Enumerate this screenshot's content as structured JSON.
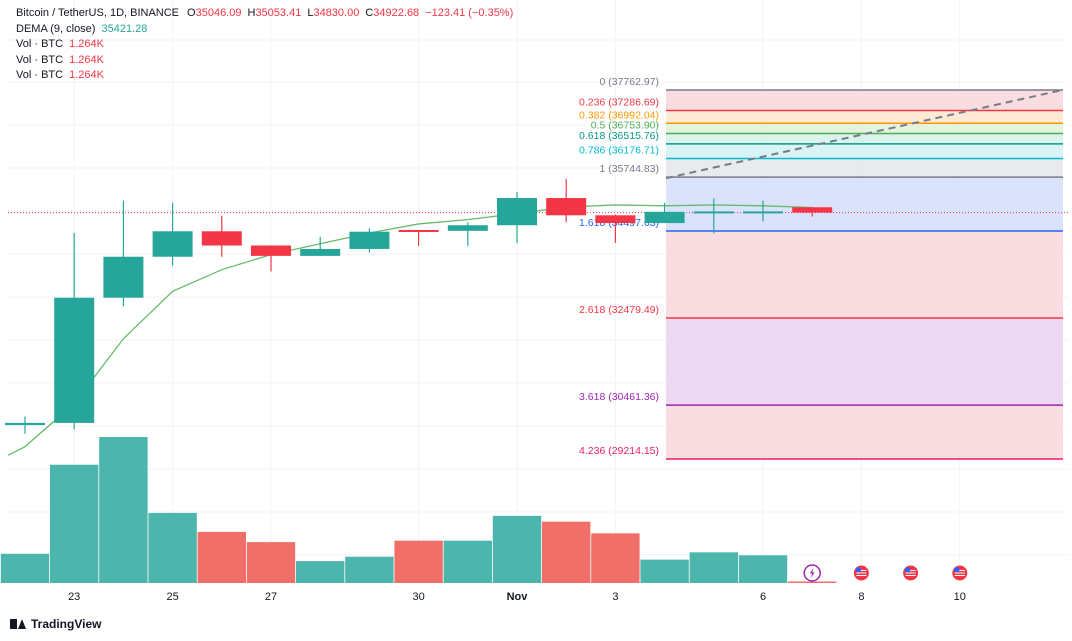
{
  "legend": {
    "symbol": "Bitcoin / TetherUS, 1D, BINANCE",
    "o_label": "O",
    "o_value": "35046.09",
    "h_label": "H",
    "h_value": "35053.41",
    "l_label": "L",
    "l_value": "34830.00",
    "c_label": "C",
    "c_value": "34922.68",
    "change": "−123.41 (−0.35%)",
    "dema_label": "DEMA (9, close)",
    "dema_value": "35421.28",
    "vol_rows": [
      {
        "label": "Vol · BTC",
        "value": "1.264K"
      },
      {
        "label": "Vol · BTC",
        "value": "1.264K"
      },
      {
        "label": "Vol · BTC",
        "value": "1.264K"
      }
    ]
  },
  "footer": {
    "brand": "TradingView"
  },
  "colors": {
    "up": "#26a69a",
    "down": "#f23645",
    "vol_up": "#4db6ac",
    "vol_down": "#f07069",
    "dema": "#66bb6a"
  },
  "chart_data": {
    "type": "candlestick",
    "x_ticks": [
      {
        "slot": 1,
        "label": "23"
      },
      {
        "slot": 3,
        "label": "25"
      },
      {
        "slot": 5,
        "label": "27"
      },
      {
        "slot": 8,
        "label": "30"
      },
      {
        "slot": 10,
        "label": "Nov"
      },
      {
        "slot": 12,
        "label": "3"
      },
      {
        "slot": 15,
        "label": "6"
      },
      {
        "slot": 17,
        "label": "8"
      },
      {
        "slot": 19,
        "label": "10"
      }
    ],
    "candles": [
      {
        "o": 30000,
        "h": 30200,
        "l": 29800,
        "c": 30050
      },
      {
        "o": 30050,
        "h": 34450,
        "l": 29900,
        "c": 32950
      },
      {
        "o": 32950,
        "h": 35200,
        "l": 32750,
        "c": 33900
      },
      {
        "o": 33900,
        "h": 35150,
        "l": 33700,
        "c": 34490
      },
      {
        "o": 34490,
        "h": 34850,
        "l": 33900,
        "c": 34160
      },
      {
        "o": 34160,
        "h": 34160,
        "l": 33560,
        "c": 33920
      },
      {
        "o": 33920,
        "h": 34360,
        "l": 33920,
        "c": 34080
      },
      {
        "o": 34080,
        "h": 34560,
        "l": 34000,
        "c": 34480
      },
      {
        "o": 34520,
        "h": 34520,
        "l": 34150,
        "c": 34500
      },
      {
        "o": 34500,
        "h": 34700,
        "l": 34150,
        "c": 34630
      },
      {
        "o": 34630,
        "h": 35400,
        "l": 34220,
        "c": 35260
      },
      {
        "o": 35260,
        "h": 35700,
        "l": 34700,
        "c": 34860
      },
      {
        "o": 34860,
        "h": 34880,
        "l": 34220,
        "c": 34680
      },
      {
        "o": 34680,
        "h": 35150,
        "l": 34680,
        "c": 34940
      },
      {
        "o": 34940,
        "h": 35250,
        "l": 34440,
        "c": 34950
      },
      {
        "o": 34940,
        "h": 35200,
        "l": 34720,
        "c": 34950
      },
      {
        "o": 35046.09,
        "h": 35053.41,
        "l": 34830.0,
        "c": 34922.68
      }
    ],
    "volume_relative": [
      0.2,
      0.81,
      1.0,
      0.48,
      0.35,
      0.28,
      0.15,
      0.18,
      0.29,
      0.29,
      0.46,
      0.42,
      0.34,
      0.16,
      0.21,
      0.19,
      0.01
    ],
    "dema": [
      29500,
      30500,
      32000,
      33100,
      33600,
      33950,
      34200,
      34450,
      34660,
      34760,
      34900,
      35050,
      35100,
      35080,
      35100,
      35080,
      35040
    ],
    "fib": {
      "levels": [
        {
          "ratio": "0",
          "price": "37762.97",
          "value": 37762.97,
          "color": "#787b86"
        },
        {
          "ratio": "0.236",
          "price": "37286.69",
          "value": 37286.69,
          "color": "#f23645"
        },
        {
          "ratio": "0.382",
          "price": "36992.04",
          "value": 36992.04,
          "color": "#ff9800"
        },
        {
          "ratio": "0.5",
          "price": "36753.90",
          "value": 36753.9,
          "color": "#4caf50"
        },
        {
          "ratio": "0.618",
          "price": "36515.76",
          "value": 36515.76,
          "color": "#089981"
        },
        {
          "ratio": "0.786",
          "price": "36176.71",
          "value": 36176.71,
          "color": "#00bcd4"
        },
        {
          "ratio": "1",
          "price": "35744.83",
          "value": 35744.83,
          "color": "#787b86"
        },
        {
          "ratio": "1.618",
          "price": "34497.63",
          "value": 34497.63,
          "color": "#2962ff"
        },
        {
          "ratio": "2.618",
          "price": "32479.49",
          "value": 32479.49,
          "color": "#f23645"
        },
        {
          "ratio": "3.618",
          "price": "30461.36",
          "value": 30461.36,
          "color": "#9c27b0"
        },
        {
          "ratio": "4.236",
          "price": "29214.15",
          "value": 29214.15,
          "color": "#e91e63"
        }
      ]
    },
    "events": [
      {
        "slot": 16,
        "icon": "lightning-icon"
      },
      {
        "slot": 17,
        "icon": "us-flag-icon"
      },
      {
        "slot": 18,
        "icon": "us-flag-icon"
      },
      {
        "slot": 19,
        "icon": "us-flag-icon"
      }
    ],
    "last_price": 34922.68
  }
}
